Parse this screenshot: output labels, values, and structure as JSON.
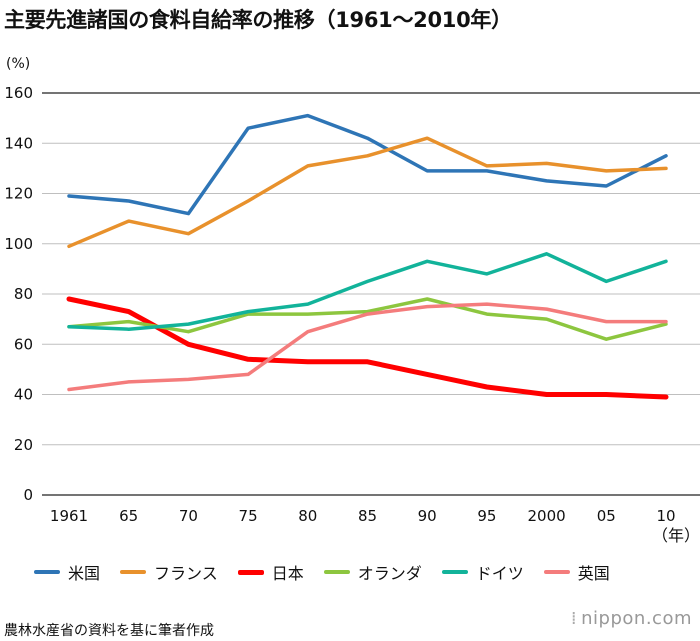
{
  "title": "主要先進諸国の食料自給率の推移（1961〜2010年）",
  "unit_label": "(%)",
  "x_unit_label": "（年）",
  "source": "農林水産省の資料を基に筆者作成",
  "logo": {
    "text": "nippon.com",
    "mark": "⁞"
  },
  "chart_data": {
    "type": "line",
    "title": "主要先進諸国の食料自給率の推移（1961〜2010年）",
    "ylabel": "(%)",
    "xlabel": "（年）",
    "ylim": [
      0,
      160
    ],
    "yticks": [
      0,
      20,
      40,
      60,
      80,
      100,
      120,
      140,
      160
    ],
    "categories": [
      "1961",
      "65",
      "70",
      "75",
      "80",
      "85",
      "90",
      "95",
      "2000",
      "05",
      "10"
    ],
    "grid": true,
    "legend_position": "bottom",
    "series": [
      {
        "name": "米国",
        "color": "#2e75b6",
        "width": 3.5,
        "values": [
          119,
          117,
          112,
          146,
          151,
          142,
          129,
          129,
          125,
          123,
          135
        ]
      },
      {
        "name": "フランス",
        "color": "#e8912c",
        "width": 3.5,
        "values": [
          99,
          109,
          104,
          117,
          131,
          135,
          142,
          131,
          132,
          129,
          130
        ]
      },
      {
        "name": "日本",
        "color": "#ff0000",
        "width": 5,
        "values": [
          78,
          73,
          60,
          54,
          53,
          53,
          48,
          43,
          40,
          40,
          39
        ]
      },
      {
        "name": "オランダ",
        "color": "#8dc63f",
        "width": 3.5,
        "values": [
          67,
          69,
          65,
          72,
          72,
          73,
          78,
          72,
          70,
          62,
          68
        ]
      },
      {
        "name": "ドイツ",
        "color": "#12b39a",
        "width": 3.5,
        "values": [
          67,
          66,
          68,
          73,
          76,
          85,
          93,
          88,
          96,
          85,
          93
        ]
      },
      {
        "name": "英国",
        "color": "#f47c7c",
        "width": 3.5,
        "values": [
          42,
          45,
          46,
          48,
          65,
          72,
          75,
          76,
          74,
          69,
          69
        ]
      }
    ]
  }
}
